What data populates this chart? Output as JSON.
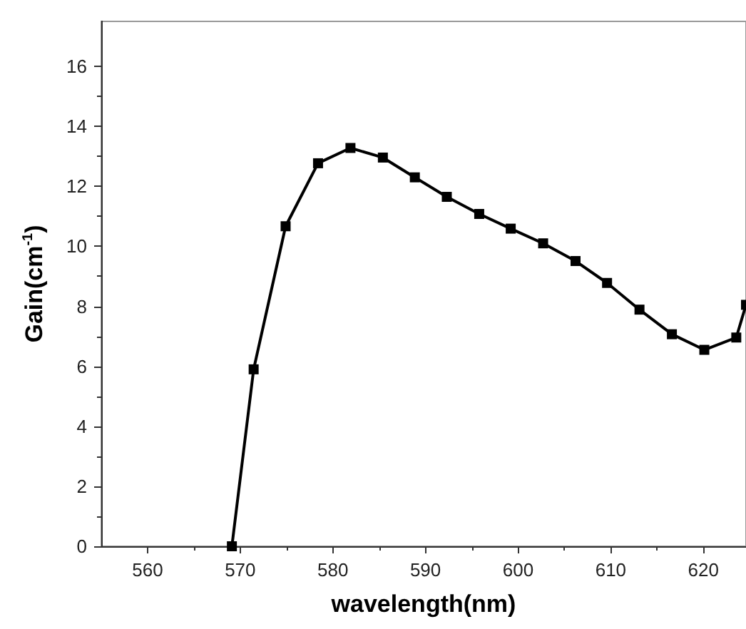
{
  "chart_data": {
    "type": "line",
    "xlabel": "wavelength(nm)",
    "ylabel": "Gain(cm$^{-1}$)",
    "x": [
      569.1,
      571.45,
      574.9,
      578.4,
      581.9,
      585.4,
      588.85,
      592.3,
      595.8,
      599.2,
      602.7,
      606.2,
      609.6,
      613.1,
      616.6,
      620.1,
      623.55,
      624.6
    ],
    "series": [
      {
        "color": "#000000",
        "values": [
          0,
          5.9,
          10.67,
          12.77,
          13.28,
          12.96,
          12.3,
          11.65,
          11.08,
          10.59,
          10.1,
          9.51,
          8.78,
          7.89,
          7.07,
          6.55,
          6.96,
          8.05
        ]
      }
    ],
    "xlim": [
      555,
      624.6
    ],
    "xticks": [
      560,
      570,
      580,
      590,
      600,
      610,
      620
    ],
    "ylim": [
      0,
      17.5
    ],
    "yticks": [
      0,
      2,
      4,
      6,
      8,
      10,
      12,
      14,
      16
    ],
    "grid": false,
    "marker": "square",
    "line_style": "solid"
  }
}
